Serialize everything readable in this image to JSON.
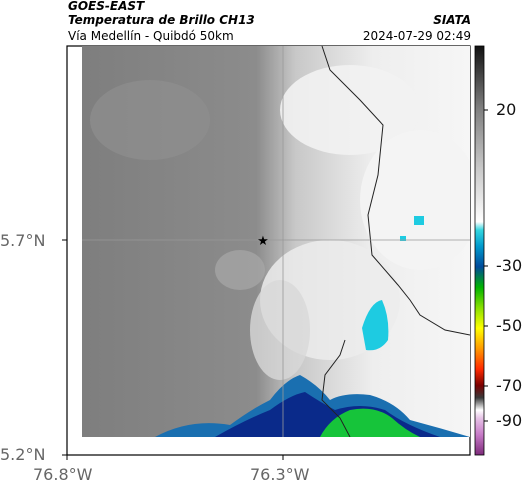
{
  "header": {
    "satellite": "GOES-EAST",
    "product": "Temperatura de Brillo CH13",
    "route": "Vía Medellín - Quibdó 50km",
    "brand": "SIATA",
    "timestamp": "2024-07-29 02:49"
  },
  "axes": {
    "lon_ticks": [
      "76.8°W",
      "76.3°W"
    ],
    "lat_ticks": [
      "5.7°N",
      "5.2°N"
    ]
  },
  "colorbar": {
    "tick_labels": [
      "20",
      "-30",
      "-50",
      "-70",
      "-90"
    ]
  },
  "colors": {
    "ocean_gray": "#8a8a8a",
    "cloud_white": "#f4f4f4",
    "cold_cyan": "#1ecbe1",
    "deep_blue": "#0a2a8a",
    "core_green": "#16c43a",
    "border_line": "#222222",
    "marker": "#000000"
  },
  "marker": {
    "icon": "star-icon"
  }
}
